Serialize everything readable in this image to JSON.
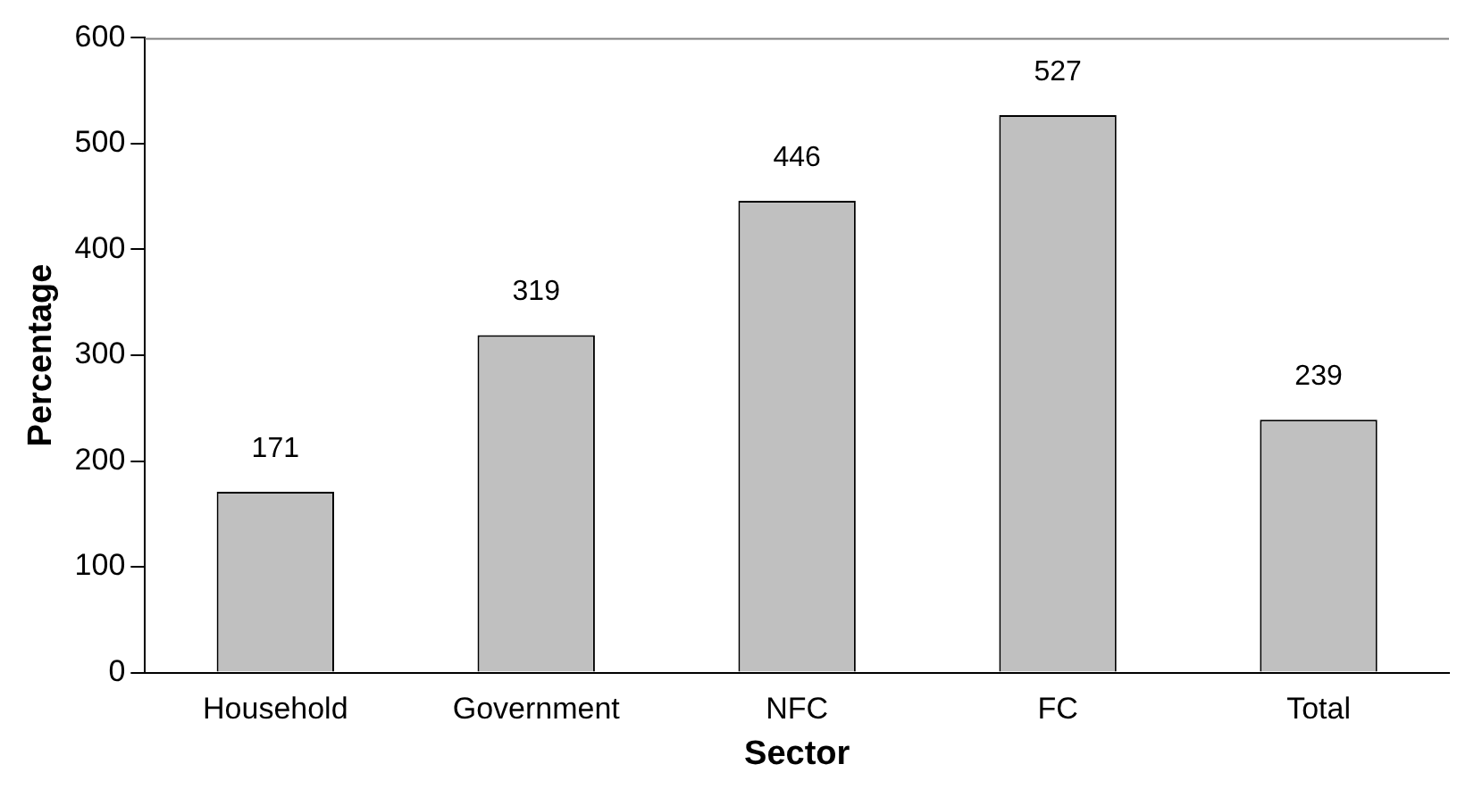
{
  "chart_data": {
    "type": "bar",
    "xlabel": "Sector",
    "ylabel": "Percentage",
    "categories": [
      "Household",
      "Government",
      "NFC",
      "FC",
      "Total"
    ],
    "values": [
      171,
      319,
      446,
      527,
      239
    ],
    "color": "#c0c0c0",
    "ylim": [
      0,
      600
    ],
    "yticks": [
      0,
      100,
      200,
      300,
      400,
      500,
      600
    ],
    "grid": false,
    "legend": false,
    "data_labels": true
  }
}
